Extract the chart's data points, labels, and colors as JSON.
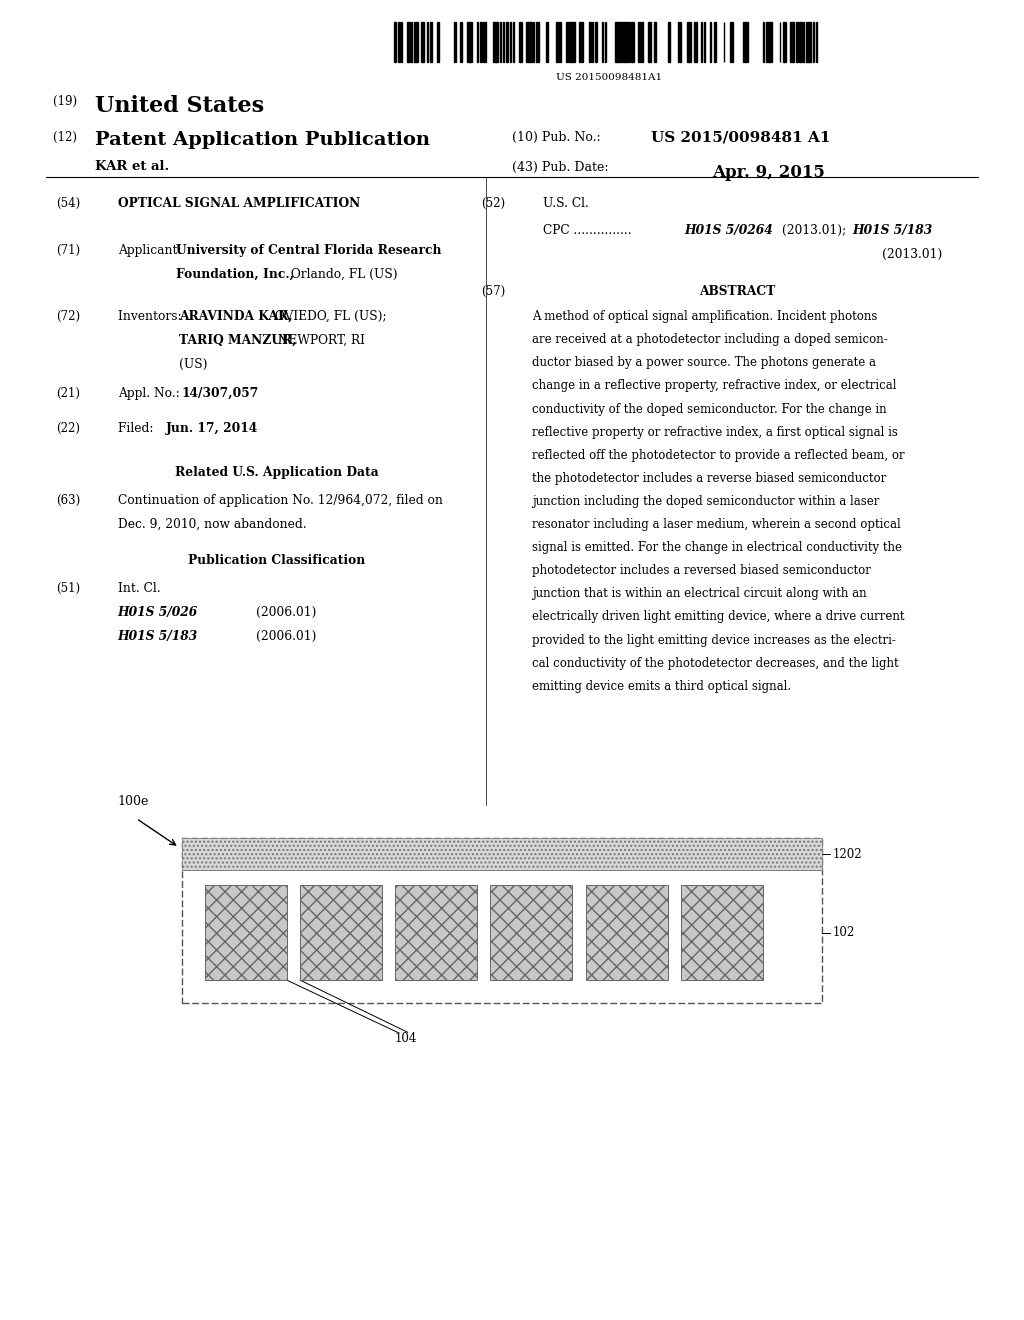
{
  "bg_color": "#ffffff",
  "barcode_text": "US 20150098481A1",
  "title_19_prefix": "(19) ",
  "title_19": "United States",
  "title_12_prefix": "(12) ",
  "title_12": "Patent Application Publication",
  "pub_no_label": "(10) Pub. No.:",
  "pub_no_val": "US 2015/0098481 A1",
  "pub_date_label": "(43) Pub. Date:",
  "pub_date_val": "Apr. 9, 2015",
  "author": "KAR et al.",
  "field54": "OPTICAL SIGNAL AMPLIFICATION",
  "field71_bold": "University of Central Florida Research",
  "field71_bold2": "Foundation, Inc.,",
  "field71_normal": " Orlando, FL (US)",
  "field72_bold1": "ARAVINDA KAR,",
  "field72_norm1": " OVIEDO, FL (US);",
  "field72_bold2": "TARIQ MANZUR,",
  "field72_norm2": " NEWPORT, RI",
  "field72_norm3": "(US)",
  "field21_val": "14/307,057",
  "field22_val": "Jun. 17, 2014",
  "related_header": "Related U.S. Application Data",
  "field63_line1": "Continuation of application No. 12/964,072, filed on",
  "field63_line2": "Dec. 9, 2010, now abandoned.",
  "pub_class_header": "Publication Classification",
  "field51_r1_bold": "H01S 5/026",
  "field51_r1_norm": "(2006.01)",
  "field51_r2_bold": "H01S 5/183",
  "field51_r2_norm": "(2006.01)",
  "field52_cpc_prefix": "CPC ............... ",
  "field52_bold1": "H01S 5/0264",
  "field52_norm1": " (2013.01); ",
  "field52_bold2": "H01S 5/183",
  "field52_norm2": "(2013.01)",
  "field57_header": "ABSTRACT",
  "abstract_lines": [
    "A method of optical signal amplification. Incident photons",
    "are received at a photodetector including a doped semicon-",
    "ductor biased by a power source. The photons generate a",
    "change in a reflective property, refractive index, or electrical",
    "conductivity of the doped semiconductor. For the change in",
    "reflective property or refractive index, a first optical signal is",
    "reflected off the photodetector to provide a reflected beam, or",
    "the photodetector includes a reverse biased semiconductor",
    "junction including the doped semiconductor within a laser",
    "resonator including a laser medium, wherein a second optical",
    "signal is emitted. For the change in electrical conductivity the",
    "photodetector includes a reversed biased semiconductor",
    "junction that is within an electrical circuit along with an",
    "electrically driven light emitting device, where a drive current",
    "provided to the light emitting device increases as the electri-",
    "cal conductivity of the photodetector decreases, and the light",
    "emitting device emits a third optical signal."
  ],
  "diagram_label100e": "100e",
  "diagram_label1202": "1202",
  "diagram_label102": "102",
  "diagram_label104": "104"
}
